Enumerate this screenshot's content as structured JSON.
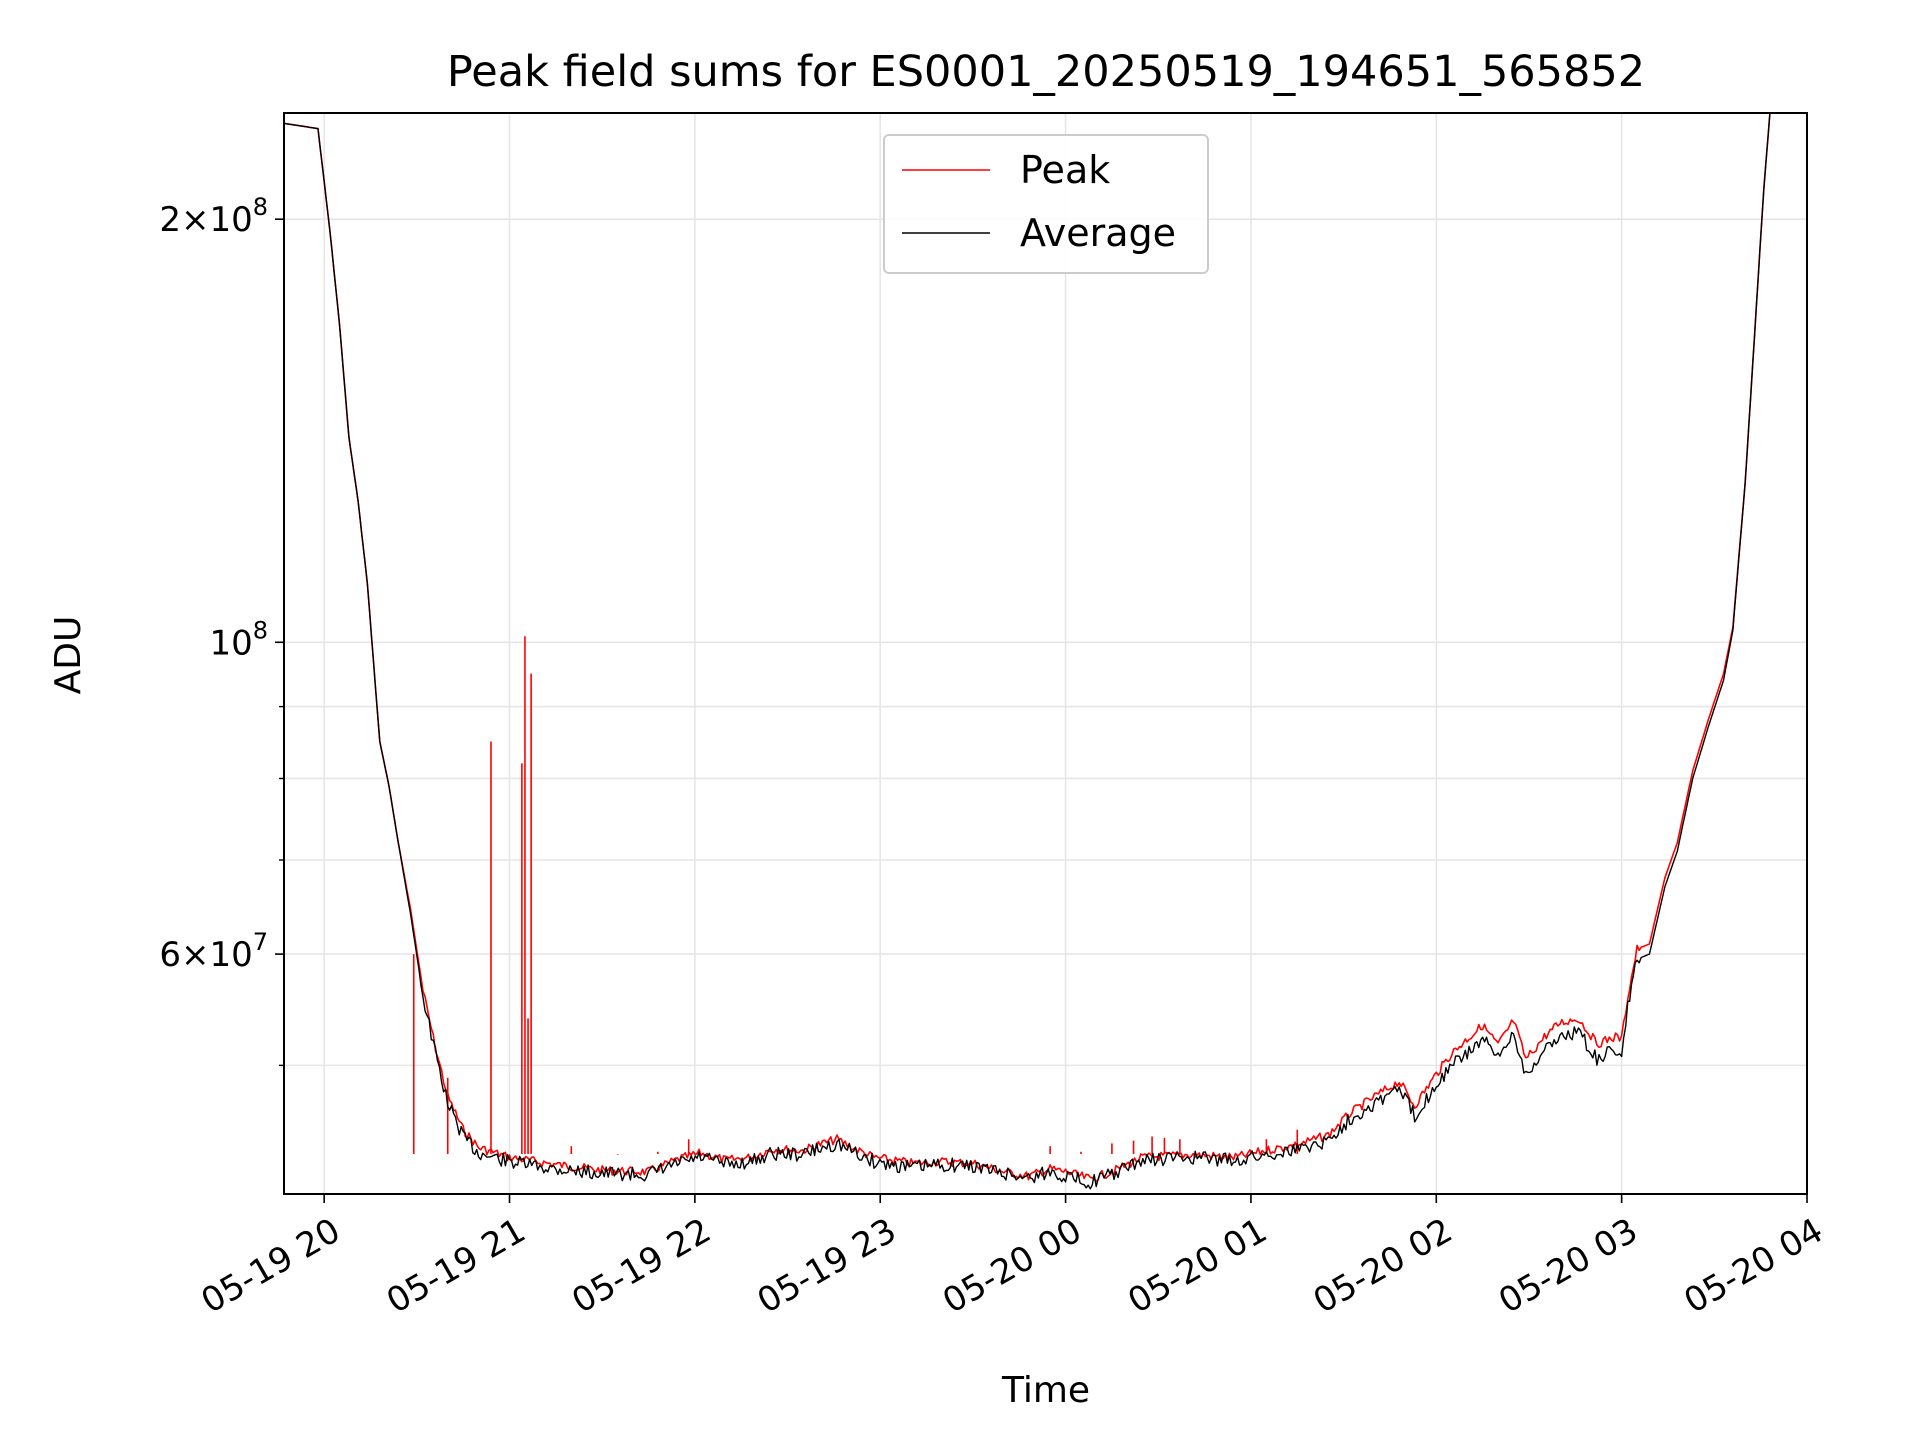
{
  "chart_data": {
    "type": "line",
    "title": "Peak field sums for ES0001_20250519_194651_565852",
    "xlabel": "Time",
    "ylabel": "ADU",
    "yscale": "log",
    "ylim": [
      40500000,
      238000000
    ],
    "xlim": [
      "2025-05-19 19:47",
      "2025-05-20 04:00"
    ],
    "grid": true,
    "legend_loc": "upper center",
    "x_ticks": [
      {
        "t": "2025-05-19 20:00",
        "label": "05-19 20"
      },
      {
        "t": "2025-05-19 21:00",
        "label": "05-19 21"
      },
      {
        "t": "2025-05-19 22:00",
        "label": "05-19 22"
      },
      {
        "t": "2025-05-19 23:00",
        "label": "05-19 23"
      },
      {
        "t": "2025-05-20 00:00",
        "label": "05-20 00"
      },
      {
        "t": "2025-05-20 01:00",
        "label": "05-20 01"
      },
      {
        "t": "2025-05-20 02:00",
        "label": "05-20 02"
      },
      {
        "t": "2025-05-20 03:00",
        "label": "05-20 03"
      },
      {
        "t": "2025-05-20 04:00",
        "label": "05-20 04"
      }
    ],
    "y_major_ticks": [
      {
        "value": 200000000,
        "mant": "2",
        "exp": "8"
      },
      {
        "value": 100000000,
        "mant": "",
        "exp": "8"
      },
      {
        "value": 60000000,
        "mant": "6",
        "exp": "7"
      }
    ],
    "y_minor_ticks": [
      50000000,
      70000000,
      80000000,
      90000000
    ],
    "colors": {
      "peak": "#ff0000",
      "average": "#000000",
      "grid": "#e6e6e6"
    },
    "series": [
      {
        "name": "Average",
        "color": "#000000",
        "points": [
          [
            "2025-05-19 19:47",
            234000000
          ],
          [
            "2025-05-19 19:58",
            232000000
          ],
          [
            "2025-05-19 20:02",
            195000000
          ],
          [
            "2025-05-19 20:05",
            168000000
          ],
          [
            "2025-05-19 20:08",
            140000000
          ],
          [
            "2025-05-19 20:11",
            126000000
          ],
          [
            "2025-05-19 20:14",
            110000000
          ],
          [
            "2025-05-19 20:18",
            85000000
          ],
          [
            "2025-05-19 20:21",
            79000000
          ],
          [
            "2025-05-19 20:24",
            72000000
          ],
          [
            "2025-05-19 20:28",
            64000000
          ],
          [
            "2025-05-19 20:32",
            56000000
          ],
          [
            "2025-05-19 20:36",
            51000000
          ],
          [
            "2025-05-19 20:40",
            47000000
          ],
          [
            "2025-05-19 20:45",
            44500000
          ],
          [
            "2025-05-19 20:50",
            43300000
          ],
          [
            "2025-05-19 21:00",
            42700000
          ],
          [
            "2025-05-19 21:15",
            42200000
          ],
          [
            "2025-05-19 21:30",
            41900000
          ],
          [
            "2025-05-19 21:45",
            41800000
          ],
          [
            "2025-05-19 21:55",
            42600000
          ],
          [
            "2025-05-19 22:02",
            43000000
          ],
          [
            "2025-05-19 22:10",
            42500000
          ],
          [
            "2025-05-19 22:18",
            42700000
          ],
          [
            "2025-05-19 22:25",
            43300000
          ],
          [
            "2025-05-19 22:35",
            43200000
          ],
          [
            "2025-05-19 22:40",
            43600000
          ],
          [
            "2025-05-19 22:46",
            44000000
          ],
          [
            "2025-05-19 22:52",
            43300000
          ],
          [
            "2025-05-19 22:58",
            42700000
          ],
          [
            "2025-05-19 23:10",
            42300000
          ],
          [
            "2025-05-19 23:20",
            42500000
          ],
          [
            "2025-05-19 23:30",
            42400000
          ],
          [
            "2025-05-19 23:40",
            41900000
          ],
          [
            "2025-05-19 23:48",
            41600000
          ],
          [
            "2025-05-19 23:55",
            42000000
          ],
          [
            "2025-05-20 00:00",
            41700000
          ],
          [
            "2025-05-20 00:08",
            41300000
          ],
          [
            "2025-05-20 00:15",
            41800000
          ],
          [
            "2025-05-20 00:25",
            42800000
          ],
          [
            "2025-05-20 00:40",
            43000000
          ],
          [
            "2025-05-20 00:55",
            42800000
          ],
          [
            "2025-05-20 01:05",
            43200000
          ],
          [
            "2025-05-20 01:15",
            43600000
          ],
          [
            "2025-05-20 01:25",
            44200000
          ],
          [
            "2025-05-20 01:32",
            45800000
          ],
          [
            "2025-05-20 01:40",
            47000000
          ],
          [
            "2025-05-20 01:48",
            48200000
          ],
          [
            "2025-05-20 01:53",
            46000000
          ],
          [
            "2025-05-20 02:00",
            48500000
          ],
          [
            "2025-05-20 02:05",
            50000000
          ],
          [
            "2025-05-20 02:10",
            51000000
          ],
          [
            "2025-05-20 02:15",
            52200000
          ],
          [
            "2025-05-20 02:20",
            50500000
          ],
          [
            "2025-05-20 02:25",
            52800000
          ],
          [
            "2025-05-20 02:29",
            49300000
          ],
          [
            "2025-05-20 02:35",
            51200000
          ],
          [
            "2025-05-20 02:40",
            52500000
          ],
          [
            "2025-05-20 02:46",
            52800000
          ],
          [
            "2025-05-20 02:52",
            50500000
          ],
          [
            "2025-05-20 02:58",
            51300000
          ],
          [
            "2025-05-20 03:00",
            51000000
          ],
          [
            "2025-05-20 03:02",
            55000000
          ],
          [
            "2025-05-20 03:05",
            59500000
          ],
          [
            "2025-05-20 03:09",
            60000000
          ],
          [
            "2025-05-20 03:14",
            67000000
          ],
          [
            "2025-05-20 03:18",
            71000000
          ],
          [
            "2025-05-20 03:23",
            80000000
          ],
          [
            "2025-05-20 03:28",
            87000000
          ],
          [
            "2025-05-20 03:33",
            94000000
          ],
          [
            "2025-05-20 03:36",
            102000000
          ],
          [
            "2025-05-20 03:40",
            130000000
          ],
          [
            "2025-05-20 03:43",
            165000000
          ],
          [
            "2025-05-20 03:46",
            210000000
          ],
          [
            "2025-05-20 03:48",
            238000000
          ],
          [
            "2025-05-20 04:00",
            238000000
          ]
        ]
      },
      {
        "name": "Peak",
        "color": "#ff0000",
        "points": [
          [
            "2025-05-19 19:47",
            234000000
          ],
          [
            "2025-05-19 19:58",
            232000000
          ],
          [
            "2025-05-19 20:02",
            195000000
          ],
          [
            "2025-05-19 20:05",
            168000000
          ],
          [
            "2025-05-19 20:08",
            140000000
          ],
          [
            "2025-05-19 20:11",
            126000000
          ],
          [
            "2025-05-19 20:14",
            110000000
          ],
          [
            "2025-05-19 20:18",
            85000000
          ],
          [
            "2025-05-19 20:21",
            79000000
          ],
          [
            "2025-05-19 20:24",
            72000000
          ],
          [
            "2025-05-19 20:28",
            64500000
          ],
          [
            "2025-05-19 20:32",
            56500000
          ],
          [
            "2025-05-19 20:36",
            51500000
          ],
          [
            "2025-05-19 20:40",
            47500000
          ],
          [
            "2025-05-19 20:45",
            45000000
          ],
          [
            "2025-05-19 20:50",
            43700000
          ],
          [
            "2025-05-19 21:00",
            43000000
          ],
          [
            "2025-05-19 21:15",
            42500000
          ],
          [
            "2025-05-19 21:30",
            42100000
          ],
          [
            "2025-05-19 21:45",
            42000000
          ],
          [
            "2025-05-19 21:55",
            42900000
          ],
          [
            "2025-05-19 22:02",
            43300000
          ],
          [
            "2025-05-19 22:10",
            42800000
          ],
          [
            "2025-05-19 22:18",
            43000000
          ],
          [
            "2025-05-19 22:25",
            43600000
          ],
          [
            "2025-05-19 22:35",
            43500000
          ],
          [
            "2025-05-19 22:40",
            43900000
          ],
          [
            "2025-05-19 22:46",
            44300000
          ],
          [
            "2025-05-19 22:52",
            43600000
          ],
          [
            "2025-05-19 22:58",
            43000000
          ],
          [
            "2025-05-19 23:10",
            42600000
          ],
          [
            "2025-05-19 23:20",
            42700000
          ],
          [
            "2025-05-19 23:30",
            42600000
          ],
          [
            "2025-05-19 23:40",
            42000000
          ],
          [
            "2025-05-19 23:48",
            41700000
          ],
          [
            "2025-05-19 23:55",
            42200000
          ],
          [
            "2025-05-20 00:00",
            42000000
          ],
          [
            "2025-05-20 00:08",
            41500000
          ],
          [
            "2025-05-20 00:15",
            42000000
          ],
          [
            "2025-05-20 00:25",
            43000000
          ],
          [
            "2025-05-20 00:40",
            43200000
          ],
          [
            "2025-05-20 00:55",
            43000000
          ],
          [
            "2025-05-20 01:05",
            43500000
          ],
          [
            "2025-05-20 01:15",
            43900000
          ],
          [
            "2025-05-20 01:25",
            44600000
          ],
          [
            "2025-05-20 01:32",
            46200000
          ],
          [
            "2025-05-20 01:40",
            47500000
          ],
          [
            "2025-05-20 01:48",
            48700000
          ],
          [
            "2025-05-20 01:53",
            46800000
          ],
          [
            "2025-05-20 02:00",
            49300000
          ],
          [
            "2025-05-20 02:05",
            51000000
          ],
          [
            "2025-05-20 02:10",
            52200000
          ],
          [
            "2025-05-20 02:15",
            53400000
          ],
          [
            "2025-05-20 02:20",
            51700000
          ],
          [
            "2025-05-20 02:25",
            53800000
          ],
          [
            "2025-05-20 02:29",
            50500000
          ],
          [
            "2025-05-20 02:35",
            52400000
          ],
          [
            "2025-05-20 02:40",
            53600000
          ],
          [
            "2025-05-20 02:46",
            54000000
          ],
          [
            "2025-05-20 02:52",
            51800000
          ],
          [
            "2025-05-20 02:58",
            52400000
          ],
          [
            "2025-05-20 03:00",
            52200000
          ],
          [
            "2025-05-20 03:02",
            56000000
          ],
          [
            "2025-05-20 03:05",
            60500000
          ],
          [
            "2025-05-20 03:09",
            61000000
          ],
          [
            "2025-05-20 03:14",
            68000000
          ],
          [
            "2025-05-20 03:18",
            72000000
          ],
          [
            "2025-05-20 03:23",
            81000000
          ],
          [
            "2025-05-20 03:28",
            88000000
          ],
          [
            "2025-05-20 03:33",
            95000000
          ],
          [
            "2025-05-20 03:36",
            102500000
          ],
          [
            "2025-05-20 03:40",
            130000000
          ],
          [
            "2025-05-20 03:43",
            165000000
          ],
          [
            "2025-05-20 03:46",
            210000000
          ],
          [
            "2025-05-20 03:48",
            238000000
          ],
          [
            "2025-05-20 04:00",
            238000000
          ]
        ],
        "spikes": [
          [
            "2025-05-19 20:29",
            60000000
          ],
          [
            "2025-05-19 20:40",
            49000000
          ],
          [
            "2025-05-19 20:54",
            85000000
          ],
          [
            "2025-05-19 21:04",
            82000000
          ],
          [
            "2025-05-19 21:05",
            101000000
          ],
          [
            "2025-05-19 21:06",
            54000000
          ],
          [
            "2025-05-19 21:07",
            95000000
          ],
          [
            "2025-05-19 21:20",
            43800000
          ],
          [
            "2025-05-19 21:35",
            43200000
          ],
          [
            "2025-05-19 21:48",
            43400000
          ],
          [
            "2025-05-19 21:58",
            44300000
          ],
          [
            "2025-05-19 23:55",
            43800000
          ],
          [
            "2025-05-20 00:05",
            43400000
          ],
          [
            "2025-05-20 00:15",
            44000000
          ],
          [
            "2025-05-20 00:22",
            44200000
          ],
          [
            "2025-05-20 00:28",
            44500000
          ],
          [
            "2025-05-20 00:32",
            44400000
          ],
          [
            "2025-05-20 00:37",
            44300000
          ],
          [
            "2025-05-20 01:05",
            44300000
          ],
          [
            "2025-05-20 01:15",
            45000000
          ]
        ]
      }
    ]
  }
}
